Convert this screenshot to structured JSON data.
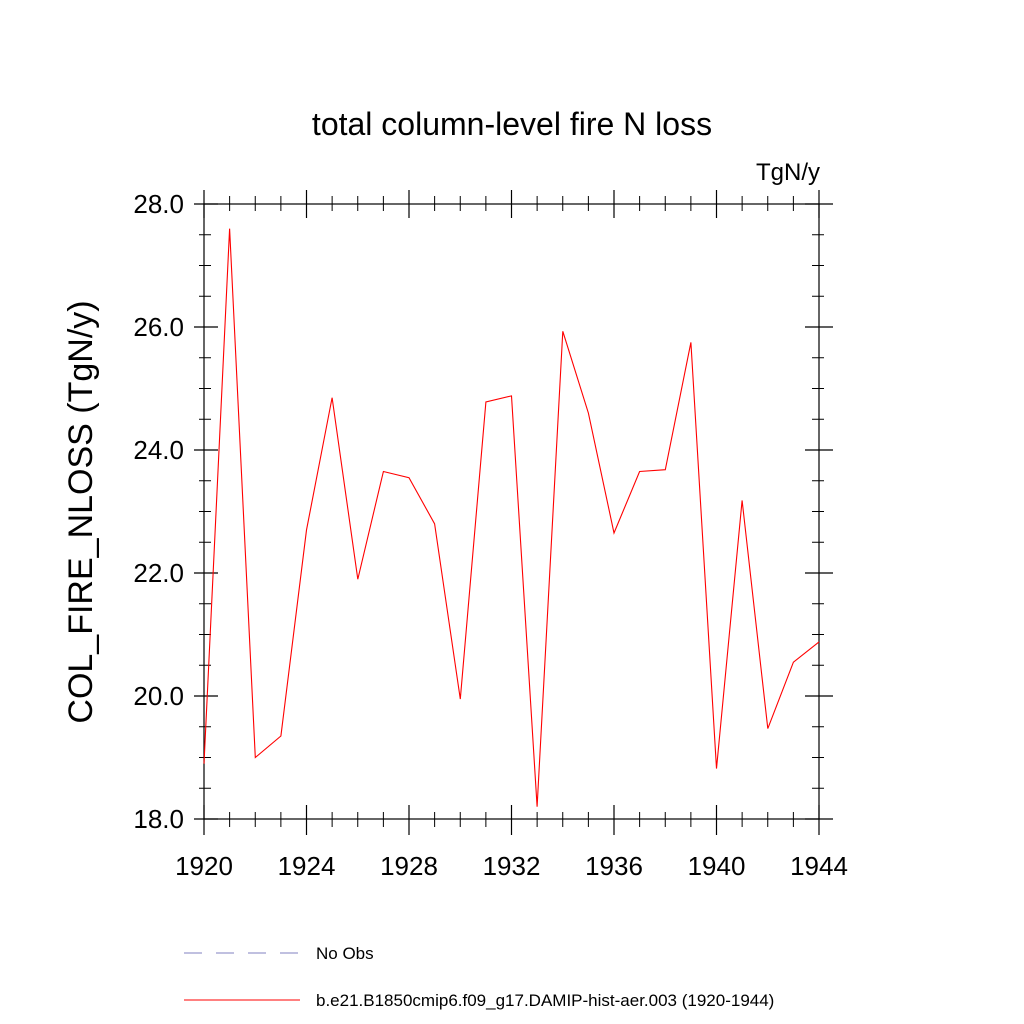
{
  "chart_data": {
    "type": "line",
    "title": "total column-level fire N loss",
    "units": "TgN/y",
    "ylabel": "COL_FIRE_NLOSS  (TgN/y)",
    "xlabel": "",
    "xlim": [
      1920,
      1944
    ],
    "ylim": [
      18.0,
      28.0
    ],
    "x_ticks": [
      1920,
      1924,
      1928,
      1932,
      1936,
      1940,
      1944
    ],
    "y_ticks": [
      "18.0",
      "20.0",
      "22.0",
      "24.0",
      "26.0",
      "28.0"
    ],
    "grid": false,
    "legend_position": "bottom",
    "x": [
      1920,
      1921,
      1922,
      1923,
      1924,
      1925,
      1926,
      1927,
      1928,
      1929,
      1930,
      1931,
      1932,
      1933,
      1934,
      1935,
      1936,
      1937,
      1938,
      1939,
      1940,
      1941,
      1942,
      1943,
      1944
    ],
    "series": [
      {
        "name": "b.e21.B1850cmip6.f09_g17.DAMIP-hist-aer.003 (1920-1944)",
        "color": "#ff0000",
        "style": "solid",
        "values": [
          18.9,
          27.6,
          19.0,
          19.35,
          22.7,
          24.85,
          21.9,
          23.65,
          23.55,
          22.8,
          19.95,
          24.78,
          24.88,
          18.2,
          25.93,
          24.6,
          22.65,
          23.65,
          23.68,
          25.75,
          18.82,
          23.18,
          19.47,
          20.55,
          20.88
        ]
      }
    ],
    "legend": [
      {
        "label": "No Obs",
        "color": "#8080c0",
        "style": "dashed"
      },
      {
        "label": "b.e21.B1850cmip6.f09_g17.DAMIP-hist-aer.003 (1920-1944)",
        "color": "#ff0000",
        "style": "solid"
      }
    ]
  }
}
